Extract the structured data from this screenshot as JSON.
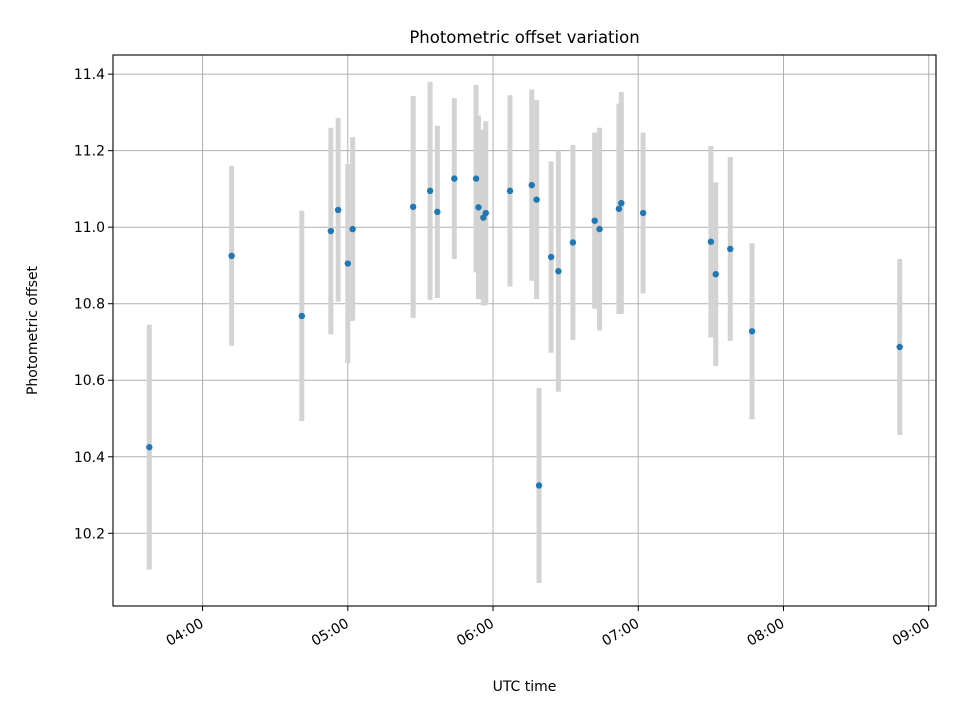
{
  "chart_data": {
    "type": "scatter",
    "title": "Photometric offset variation",
    "xlabel": "UTC time",
    "ylabel": "Photometric offset",
    "x_ticks": [
      "04:00",
      "05:00",
      "06:00",
      "07:00",
      "08:00",
      "09:00"
    ],
    "y_ticks": [
      "10.2",
      "10.4",
      "10.6",
      "10.8",
      "11.0",
      "11.2",
      "11.4"
    ],
    "xlim": [
      "03:23",
      "09:03"
    ],
    "ylim": [
      10.01,
      11.45
    ],
    "grid": true,
    "point_color": "#1f77b4",
    "errorbar_color": "#d3d3d3",
    "points": [
      {
        "x": "03:38",
        "y": 10.425,
        "err": 0.32
      },
      {
        "x": "04:12",
        "y": 10.925,
        "err": 0.235
      },
      {
        "x": "04:41",
        "y": 10.768,
        "err": 0.275
      },
      {
        "x": "04:53",
        "y": 10.99,
        "err": 0.27
      },
      {
        "x": "04:56",
        "y": 11.045,
        "err": 0.24
      },
      {
        "x": "05:00",
        "y": 10.905,
        "err": 0.26
      },
      {
        "x": "05:02",
        "y": 10.995,
        "err": 0.24
      },
      {
        "x": "05:27",
        "y": 11.053,
        "err": 0.29
      },
      {
        "x": "05:34",
        "y": 11.095,
        "err": 0.285
      },
      {
        "x": "05:37",
        "y": 11.04,
        "err": 0.225
      },
      {
        "x": "05:44",
        "y": 11.127,
        "err": 0.21
      },
      {
        "x": "05:53",
        "y": 11.127,
        "err": 0.245
      },
      {
        "x": "05:54",
        "y": 11.052,
        "err": 0.24
      },
      {
        "x": "05:56",
        "y": 11.025,
        "err": 0.23
      },
      {
        "x": "05:57",
        "y": 11.037,
        "err": 0.24
      },
      {
        "x": "06:07",
        "y": 11.095,
        "err": 0.25
      },
      {
        "x": "06:16",
        "y": 11.11,
        "err": 0.25
      },
      {
        "x": "06:18",
        "y": 11.072,
        "err": 0.26
      },
      {
        "x": "06:19",
        "y": 10.325,
        "err": 0.255
      },
      {
        "x": "06:24",
        "y": 10.922,
        "err": 0.25
      },
      {
        "x": "06:27",
        "y": 10.885,
        "err": 0.315
      },
      {
        "x": "06:33",
        "y": 10.96,
        "err": 0.255
      },
      {
        "x": "06:42",
        "y": 11.017,
        "err": 0.23
      },
      {
        "x": "06:44",
        "y": 10.995,
        "err": 0.265
      },
      {
        "x": "06:52",
        "y": 11.048,
        "err": 0.275
      },
      {
        "x": "06:53",
        "y": 11.063,
        "err": 0.29
      },
      {
        "x": "07:02",
        "y": 11.037,
        "err": 0.21
      },
      {
        "x": "07:30",
        "y": 10.962,
        "err": 0.25
      },
      {
        "x": "07:32",
        "y": 10.877,
        "err": 0.24
      },
      {
        "x": "07:38",
        "y": 10.943,
        "err": 0.24
      },
      {
        "x": "07:47",
        "y": 10.728,
        "err": 0.23
      },
      {
        "x": "08:48",
        "y": 10.687,
        "err": 0.23
      }
    ]
  }
}
